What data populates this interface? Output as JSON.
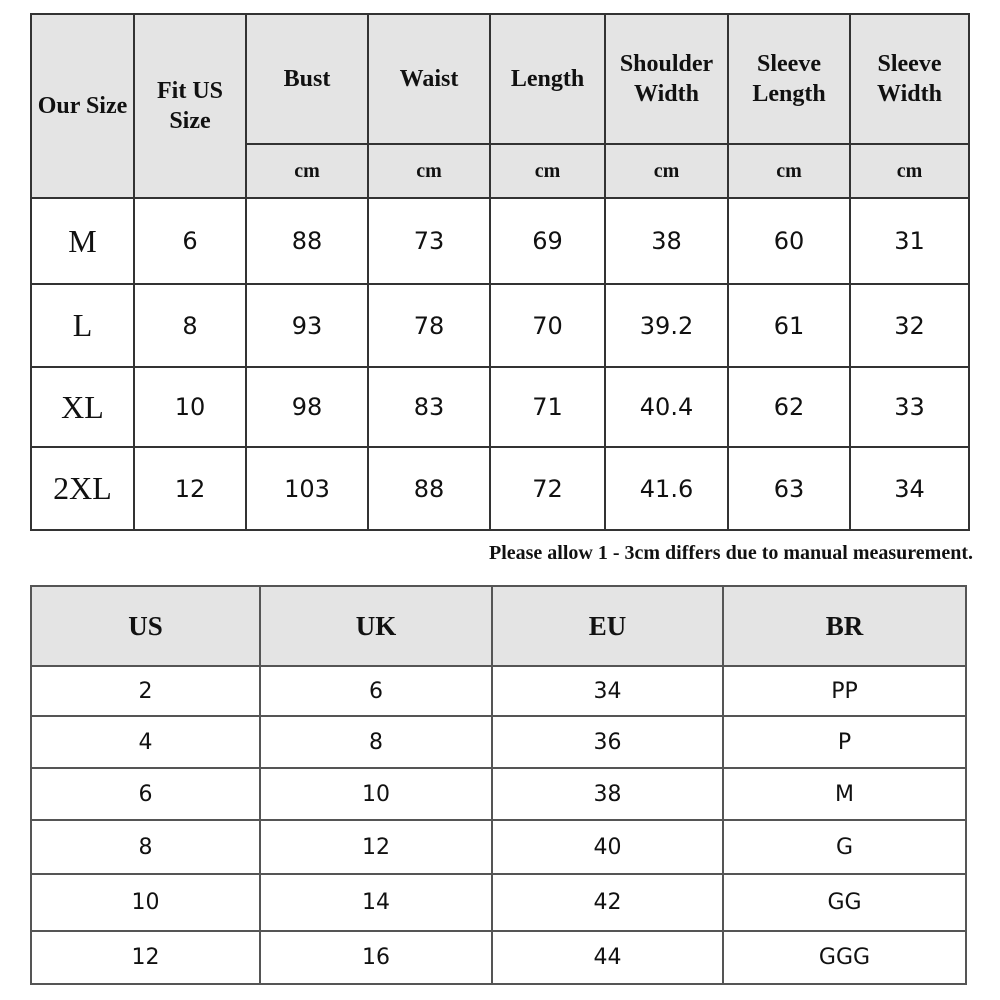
{
  "size_chart": {
    "headers": [
      "Our Size",
      "Fit US Size",
      "Bust",
      "Waist",
      "Length",
      "Shoulder Width",
      "Sleeve Length",
      "Sleeve Width"
    ],
    "unit": "cm",
    "rows": [
      [
        "M",
        "6",
        "88",
        "73",
        "69",
        "38",
        "60",
        "31"
      ],
      [
        "L",
        "8",
        "93",
        "78",
        "70",
        "39.2",
        "61",
        "32"
      ],
      [
        "XL",
        "10",
        "98",
        "83",
        "71",
        "40.4",
        "62",
        "33"
      ],
      [
        "2XL",
        "12",
        "103",
        "88",
        "72",
        "41.6",
        "63",
        "34"
      ]
    ]
  },
  "note": "Please allow 1 - 3cm differs due to manual measurement.",
  "conversion_chart": {
    "headers": [
      "US",
      "UK",
      "EU",
      "BR"
    ],
    "rows": [
      [
        "2",
        "6",
        "34",
        "PP"
      ],
      [
        "4",
        "8",
        "36",
        "P"
      ],
      [
        "6",
        "10",
        "38",
        "M"
      ],
      [
        "8",
        "12",
        "40",
        "G"
      ],
      [
        "10",
        "14",
        "42",
        "GG"
      ],
      [
        "12",
        "16",
        "44",
        "GGG"
      ]
    ]
  },
  "colors": {
    "header_bg": "#e4e4e4",
    "border": "#333333"
  }
}
